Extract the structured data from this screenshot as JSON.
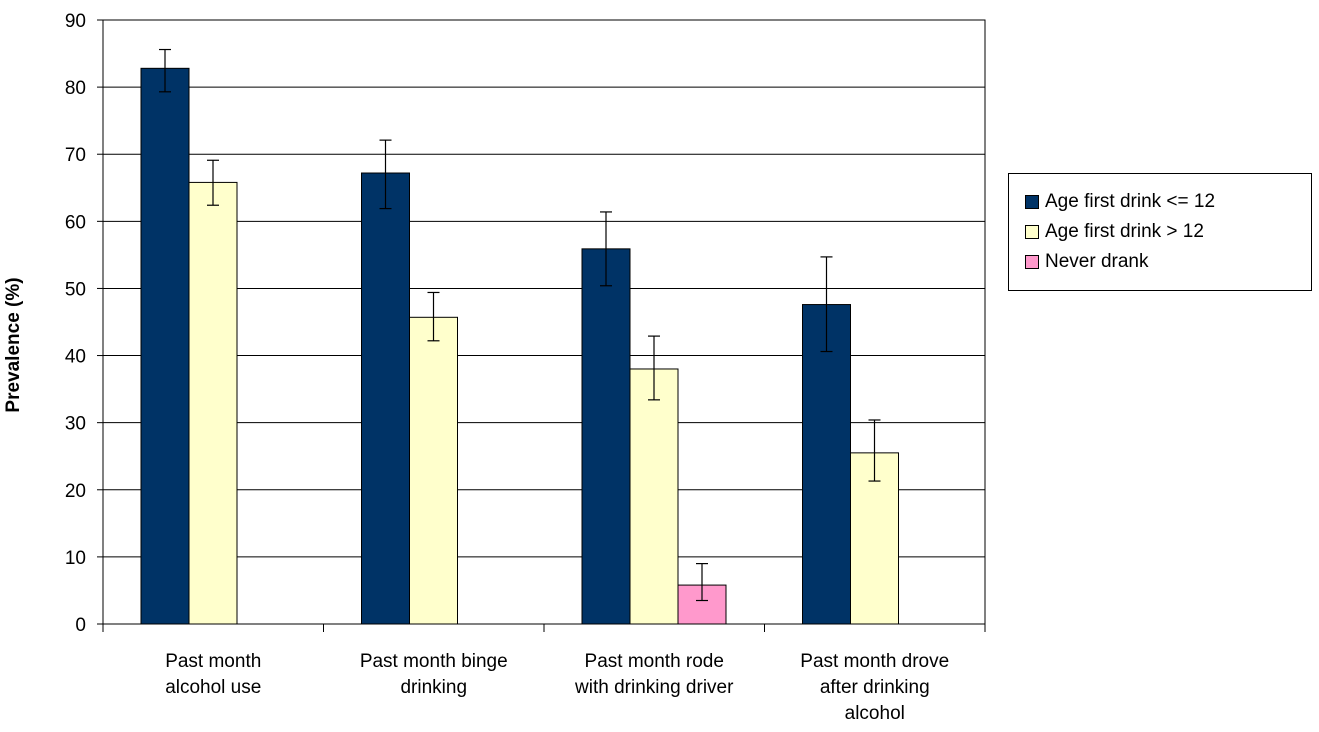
{
  "chart_data": {
    "type": "bar",
    "ylabel": "Prevalence (%)",
    "ylim": [
      0,
      90
    ],
    "yticks": [
      0,
      10,
      20,
      30,
      40,
      50,
      60,
      70,
      80,
      90
    ],
    "grid": true,
    "legend_position": "right",
    "categories": [
      [
        "Past month",
        "alcohol use"
      ],
      [
        "Past month binge",
        "drinking"
      ],
      [
        "Past month rode",
        "with drinking driver"
      ],
      [
        "Past month drove",
        "after drinking",
        "alcohol"
      ]
    ],
    "series": [
      {
        "name": "Age first drink <= 12",
        "color": "#003366",
        "values": [
          82.8,
          67.2,
          55.9,
          47.6
        ],
        "err_low": [
          79.3,
          61.9,
          50.4,
          40.6
        ],
        "err_high": [
          85.6,
          72.1,
          61.4,
          54.7
        ]
      },
      {
        "name": "Age first drink > 12",
        "color": "#FFFFCC",
        "values": [
          65.8,
          45.7,
          38.0,
          25.5
        ],
        "err_low": [
          62.4,
          42.2,
          33.4,
          21.3
        ],
        "err_high": [
          69.1,
          49.4,
          42.9,
          30.4
        ]
      },
      {
        "name": "Never drank",
        "color": "#FF99CC",
        "values": [
          null,
          null,
          5.8,
          null
        ],
        "err_low": [
          null,
          null,
          3.5,
          null
        ],
        "err_high": [
          null,
          null,
          9.0,
          null
        ]
      }
    ]
  }
}
